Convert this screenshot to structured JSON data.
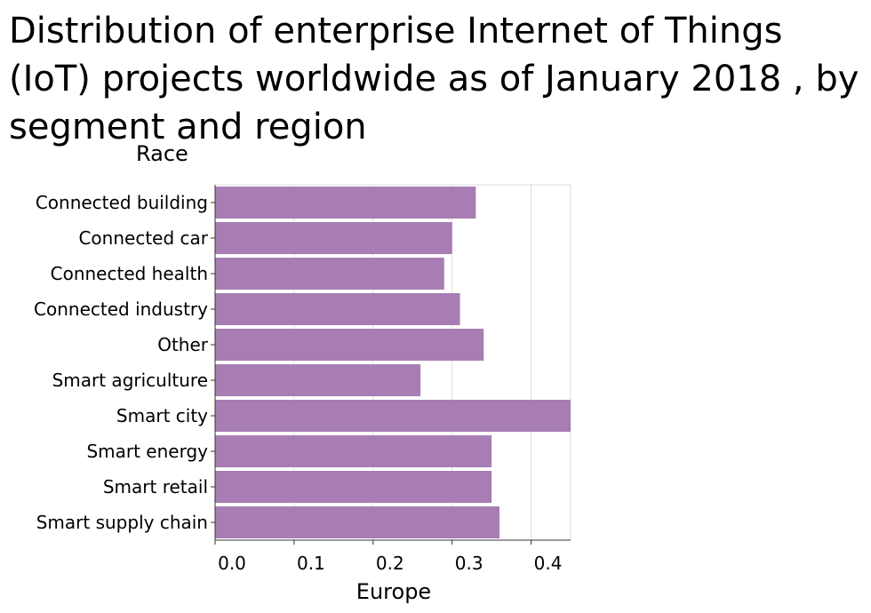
{
  "chart_data": {
    "type": "bar",
    "orientation": "horizontal",
    "title": "Distribution of enterprise Internet of Things (IoT) projects worldwide as of January 2018 , by segment and region",
    "ylabel": "Race",
    "xlabel": "Europe",
    "categories": [
      "Connected building",
      "Connected car",
      "Connected health",
      "Connected industry",
      "Other",
      "Smart agriculture",
      "Smart city",
      "Smart energy",
      "Smart retail",
      "Smart supply chain"
    ],
    "values": [
      0.33,
      0.3,
      0.29,
      0.31,
      0.34,
      0.26,
      0.45,
      0.35,
      0.35,
      0.36
    ],
    "xlim": [
      0,
      0.45
    ],
    "xticks": [
      "0.0",
      "0.1",
      "0.2",
      "0.3",
      "0.4"
    ],
    "grid": "vertical",
    "bar_color": "#a87db3"
  }
}
